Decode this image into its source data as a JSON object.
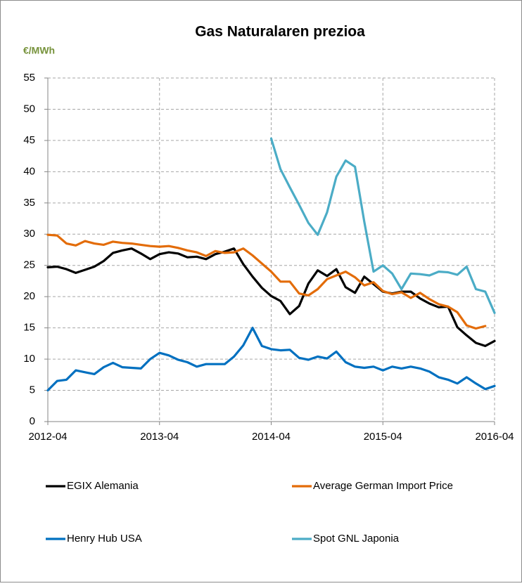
{
  "chart_data": {
    "type": "line",
    "title": "Gas Naturalaren prezioa",
    "y_label": "€/MWh",
    "x": [
      "2012-04",
      "2012-05",
      "2012-06",
      "2012-07",
      "2012-08",
      "2012-09",
      "2012-10",
      "2012-11",
      "2012-12",
      "2013-01",
      "2013-02",
      "2013-03",
      "2013-04",
      "2013-05",
      "2013-06",
      "2013-07",
      "2013-08",
      "2013-09",
      "2013-10",
      "2013-11",
      "2013-12",
      "2014-01",
      "2014-02",
      "2014-03",
      "2014-04",
      "2014-05",
      "2014-06",
      "2014-07",
      "2014-08",
      "2014-09",
      "2014-10",
      "2014-11",
      "2014-12",
      "2015-01",
      "2015-02",
      "2015-03",
      "2015-04",
      "2015-05",
      "2015-06",
      "2015-07",
      "2015-08",
      "2015-09",
      "2015-10",
      "2015-11",
      "2015-12",
      "2016-01",
      "2016-02",
      "2016-03",
      "2016-04"
    ],
    "xticks": [
      "2012-04",
      "2013-04",
      "2014-04",
      "2015-04",
      "2016-04"
    ],
    "ylim": [
      0,
      55
    ],
    "yticks": [
      0,
      5,
      10,
      15,
      20,
      25,
      30,
      35,
      40,
      45,
      50,
      55
    ],
    "grid": true,
    "legend": "bottom",
    "series": [
      {
        "name": "EGIX Alemania",
        "color": "#000000",
        "values": [
          24.7,
          24.8,
          24.4,
          23.8,
          24.3,
          24.8,
          25.7,
          27.0,
          27.4,
          27.7,
          26.9,
          26.0,
          26.8,
          27.1,
          26.9,
          26.3,
          26.4,
          26.0,
          26.8,
          27.2,
          27.7,
          25.2,
          23.2,
          21.4,
          20.1,
          19.3,
          17.2,
          18.5,
          22.1,
          24.2,
          23.3,
          24.4,
          21.5,
          20.6,
          23.2,
          22.0,
          20.8,
          20.5,
          20.8,
          20.8,
          19.7,
          18.9,
          18.3,
          18.4,
          15.1,
          13.8,
          12.6,
          12.1,
          12.9
        ]
      },
      {
        "name": "Average German Import Price",
        "color": "#e36c09",
        "values": [
          29.9,
          29.8,
          28.5,
          28.2,
          28.9,
          28.5,
          28.3,
          28.8,
          28.6,
          28.5,
          28.3,
          28.1,
          28.0,
          28.1,
          27.8,
          27.4,
          27.1,
          26.5,
          27.3,
          27.0,
          27.1,
          27.7,
          26.6,
          25.3,
          24.0,
          22.4,
          22.4,
          20.5,
          20.2,
          21.2,
          22.8,
          23.4,
          24.0,
          23.1,
          21.8,
          22.3,
          20.9,
          20.4,
          20.7,
          19.8,
          20.6,
          19.6,
          18.8,
          18.4,
          17.5,
          15.4,
          14.9,
          15.3,
          null
        ]
      },
      {
        "name": "Henry Hub USA",
        "color": "#0070c0",
        "values": [
          5.0,
          6.5,
          6.7,
          8.2,
          7.9,
          7.6,
          8.7,
          9.4,
          8.7,
          8.6,
          8.5,
          10.0,
          11.0,
          10.6,
          9.9,
          9.5,
          8.8,
          9.2,
          9.2,
          9.2,
          10.4,
          12.2,
          15.0,
          12.1,
          11.6,
          11.4,
          11.5,
          10.2,
          9.9,
          10.4,
          10.1,
          11.2,
          9.5,
          8.8,
          8.6,
          8.8,
          8.2,
          8.8,
          8.5,
          8.8,
          8.5,
          8.0,
          7.1,
          6.7,
          6.1,
          7.1,
          6.1,
          5.2,
          5.7
        ]
      },
      {
        "name": "Spot GNL Japonia",
        "color": "#4bacc6",
        "values": [
          null,
          null,
          null,
          null,
          null,
          null,
          null,
          null,
          null,
          null,
          null,
          null,
          null,
          null,
          null,
          null,
          null,
          null,
          null,
          null,
          null,
          null,
          null,
          null,
          45.3,
          40.4,
          37.5,
          34.7,
          31.8,
          29.9,
          33.5,
          39.2,
          41.8,
          40.8,
          32.0,
          24.0,
          25.0,
          23.7,
          21.2,
          23.7,
          23.6,
          23.4,
          24.0,
          23.9,
          23.5,
          24.8,
          21.2,
          20.8,
          17.4
        ]
      }
    ]
  }
}
